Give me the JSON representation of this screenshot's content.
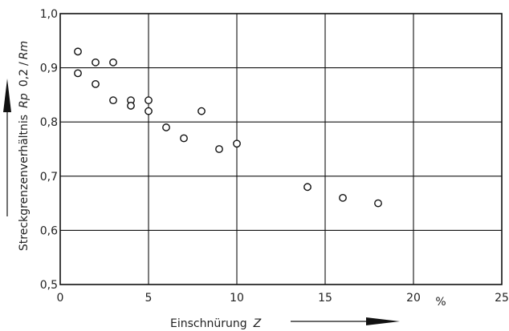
{
  "chart_data": {
    "type": "scatter",
    "xlabel_text": "Einschnürung",
    "xlabel_var": "Z",
    "xunit": "%",
    "ylabel_text": "Streckgrenzenverhältnis",
    "ylabel_var": "Rp",
    "ylabel_sub": "0,2",
    "ylabel_den": "/",
    "ylabel_den_var": "Rm",
    "xlim": [
      0,
      25
    ],
    "ylim": [
      0.5,
      1.0
    ],
    "x_ticks": [
      {
        "value": 0,
        "label": "0"
      },
      {
        "value": 5,
        "label": "5"
      },
      {
        "value": 10,
        "label": "10"
      },
      {
        "value": 15,
        "label": "15"
      },
      {
        "value": 20,
        "label": "20"
      },
      {
        "value": 25,
        "label": "25"
      }
    ],
    "y_ticks": [
      {
        "value": 0.5,
        "label": "0,5"
      },
      {
        "value": 0.6,
        "label": "0,6"
      },
      {
        "value": 0.7,
        "label": "0,7"
      },
      {
        "value": 0.8,
        "label": "0,8"
      },
      {
        "value": 0.9,
        "label": "0,9"
      },
      {
        "value": 1.0,
        "label": "1,0"
      }
    ],
    "grid": true,
    "points": [
      {
        "x": 1,
        "y": 0.93
      },
      {
        "x": 1,
        "y": 0.89
      },
      {
        "x": 2,
        "y": 0.91
      },
      {
        "x": 2,
        "y": 0.87
      },
      {
        "x": 3,
        "y": 0.91
      },
      {
        "x": 3,
        "y": 0.84
      },
      {
        "x": 4,
        "y": 0.84
      },
      {
        "x": 4,
        "y": 0.83
      },
      {
        "x": 5,
        "y": 0.84
      },
      {
        "x": 5,
        "y": 0.82
      },
      {
        "x": 6,
        "y": 0.79
      },
      {
        "x": 7,
        "y": 0.77
      },
      {
        "x": 8,
        "y": 0.82
      },
      {
        "x": 9,
        "y": 0.75
      },
      {
        "x": 10,
        "y": 0.76
      },
      {
        "x": 14,
        "y": 0.68
      },
      {
        "x": 16,
        "y": 0.66
      },
      {
        "x": 18,
        "y": 0.65
      }
    ]
  }
}
